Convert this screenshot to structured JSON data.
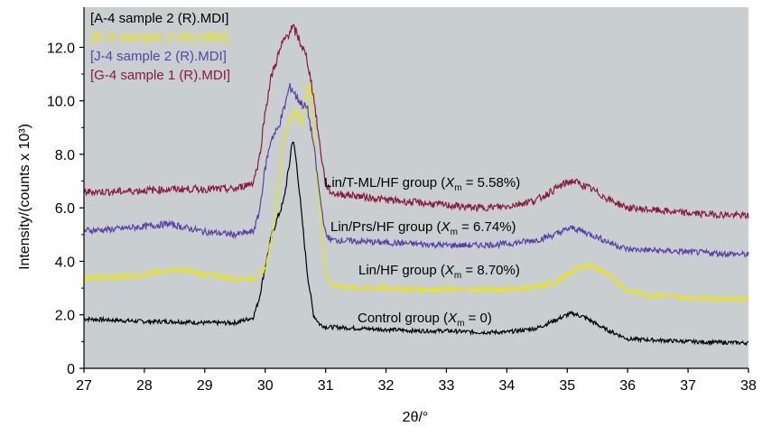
{
  "chart_data": {
    "type": "line",
    "xlabel": "2θ/°",
    "ylabel": "Intensity/(counts x 10³)",
    "xlim": [
      27,
      38
    ],
    "ylim": [
      0,
      13.5
    ],
    "x_ticks": [
      "27",
      "28",
      "29",
      "30",
      "31",
      "32",
      "33",
      "34",
      "35",
      "36",
      "37",
      "38"
    ],
    "y_ticks": [
      "0",
      "2.0",
      "4.0",
      "6.0",
      "8.0",
      "10.0",
      "12.0"
    ],
    "y_tick_values": [
      0,
      2,
      4,
      6,
      8,
      10,
      12
    ],
    "legend_position": "top-left",
    "background_color": "#c9cfd0",
    "grid": false,
    "series": [
      {
        "name": "[A-4 sample 2 (R).MDI]",
        "color": "#000000",
        "annotation": "Control group (Xm = 0)",
        "annotation_parts": {
          "prefix": "Control group (",
          "var": "X",
          "sub": "m",
          "suffix": " = 0)"
        },
        "points": [
          [
            27.0,
            1.85
          ],
          [
            27.5,
            1.8
          ],
          [
            28.0,
            1.75
          ],
          [
            28.5,
            1.75
          ],
          [
            29.0,
            1.7
          ],
          [
            29.5,
            1.7
          ],
          [
            29.8,
            1.9
          ],
          [
            29.9,
            2.6
          ],
          [
            30.0,
            3.8
          ],
          [
            30.1,
            4.9
          ],
          [
            30.2,
            5.6
          ],
          [
            30.3,
            6.2
          ],
          [
            30.4,
            7.6
          ],
          [
            30.45,
            8.6
          ],
          [
            30.5,
            8.0
          ],
          [
            30.55,
            7.0
          ],
          [
            30.6,
            5.8
          ],
          [
            30.7,
            3.5
          ],
          [
            30.8,
            2.0
          ],
          [
            30.9,
            1.65
          ],
          [
            31.0,
            1.55
          ],
          [
            31.5,
            1.5
          ],
          [
            32.0,
            1.45
          ],
          [
            32.5,
            1.4
          ],
          [
            33.0,
            1.4
          ],
          [
            33.5,
            1.35
          ],
          [
            34.0,
            1.35
          ],
          [
            34.5,
            1.5
          ],
          [
            34.8,
            1.8
          ],
          [
            35.0,
            2.0
          ],
          [
            35.1,
            2.05
          ],
          [
            35.3,
            1.9
          ],
          [
            35.6,
            1.5
          ],
          [
            36.0,
            1.1
          ],
          [
            36.5,
            1.05
          ],
          [
            37.0,
            1.0
          ],
          [
            37.5,
            0.97
          ],
          [
            38.0,
            0.95
          ]
        ]
      },
      {
        "name": "[E-4 sample 2 (R).MDI]",
        "color": "#f0e600",
        "annotation": "Lin/HF group (Xm = 8.70%)",
        "annotation_parts": {
          "prefix": "Lin/HF group (",
          "var": "X",
          "sub": "m",
          "suffix": " = 8.70%)"
        },
        "points": [
          [
            27.0,
            3.4
          ],
          [
            27.5,
            3.4
          ],
          [
            28.0,
            3.5
          ],
          [
            28.5,
            3.7
          ],
          [
            28.8,
            3.6
          ],
          [
            29.0,
            3.5
          ],
          [
            29.5,
            3.35
          ],
          [
            29.8,
            3.35
          ],
          [
            30.0,
            3.7
          ],
          [
            30.1,
            4.8
          ],
          [
            30.2,
            6.5
          ],
          [
            30.3,
            8.6
          ],
          [
            30.4,
            9.3
          ],
          [
            30.5,
            9.6
          ],
          [
            30.6,
            9.2
          ],
          [
            30.7,
            10.5
          ],
          [
            30.75,
            10.3
          ],
          [
            30.8,
            8.8
          ],
          [
            30.9,
            6.0
          ],
          [
            31.0,
            3.6
          ],
          [
            31.1,
            3.1
          ],
          [
            31.5,
            3.0
          ],
          [
            32.0,
            3.0
          ],
          [
            32.5,
            2.95
          ],
          [
            33.0,
            2.95
          ],
          [
            33.5,
            2.95
          ],
          [
            34.0,
            2.95
          ],
          [
            34.5,
            3.05
          ],
          [
            34.8,
            3.2
          ],
          [
            35.0,
            3.5
          ],
          [
            35.2,
            3.8
          ],
          [
            35.4,
            3.85
          ],
          [
            35.6,
            3.6
          ],
          [
            35.8,
            3.3
          ],
          [
            36.0,
            2.9
          ],
          [
            36.3,
            2.75
          ],
          [
            37.0,
            2.65
          ],
          [
            37.5,
            2.6
          ],
          [
            38.0,
            2.6
          ]
        ]
      },
      {
        "name": "[J-4 sample 2 (R).MDI]",
        "color": "#5a3fa8",
        "annotation": "Lin/Prs/HF group (Xm = 6.74%)",
        "annotation_parts": {
          "prefix": "Lin/Prs/HF group (",
          "var": "X",
          "sub": "m",
          "suffix": " = 6.74%)"
        },
        "points": [
          [
            27.0,
            5.15
          ],
          [
            27.5,
            5.2
          ],
          [
            28.0,
            5.3
          ],
          [
            28.4,
            5.4
          ],
          [
            28.8,
            5.2
          ],
          [
            29.0,
            5.1
          ],
          [
            29.5,
            5.0
          ],
          [
            29.8,
            5.1
          ],
          [
            29.9,
            5.8
          ],
          [
            30.0,
            7.5
          ],
          [
            30.1,
            8.6
          ],
          [
            30.2,
            8.9
          ],
          [
            30.3,
            9.6
          ],
          [
            30.4,
            10.5
          ],
          [
            30.45,
            10.45
          ],
          [
            30.5,
            10.2
          ],
          [
            30.6,
            9.9
          ],
          [
            30.7,
            9.7
          ],
          [
            30.8,
            8.4
          ],
          [
            30.9,
            6.5
          ],
          [
            31.0,
            5.0
          ],
          [
            31.1,
            4.8
          ],
          [
            31.5,
            4.75
          ],
          [
            32.0,
            4.7
          ],
          [
            32.5,
            4.65
          ],
          [
            33.0,
            4.6
          ],
          [
            33.5,
            4.6
          ],
          [
            34.0,
            4.65
          ],
          [
            34.5,
            4.8
          ],
          [
            34.8,
            5.0
          ],
          [
            35.0,
            5.2
          ],
          [
            35.1,
            5.25
          ],
          [
            35.4,
            5.0
          ],
          [
            35.7,
            4.7
          ],
          [
            36.0,
            4.45
          ],
          [
            36.5,
            4.4
          ],
          [
            37.0,
            4.35
          ],
          [
            37.5,
            4.3
          ],
          [
            38.0,
            4.25
          ]
        ]
      },
      {
        "name": "[G-4 sample 1 (R).MDI]",
        "color": "#8b1a3a",
        "annotation": "Lin/T-ML/HF group (Xm = 5.58%)",
        "annotation_parts": {
          "prefix": "Lin/T-ML/HF group (",
          "var": "X",
          "sub": "m",
          "suffix": " = 5.58%)"
        },
        "points": [
          [
            27.0,
            6.6
          ],
          [
            27.5,
            6.6
          ],
          [
            28.0,
            6.65
          ],
          [
            28.5,
            6.7
          ],
          [
            29.0,
            6.7
          ],
          [
            29.5,
            6.7
          ],
          [
            29.8,
            6.95
          ],
          [
            29.9,
            7.8
          ],
          [
            30.0,
            9.6
          ],
          [
            30.1,
            10.9
          ],
          [
            30.2,
            11.6
          ],
          [
            30.3,
            12.2
          ],
          [
            30.4,
            12.6
          ],
          [
            30.45,
            12.7
          ],
          [
            30.5,
            12.6
          ],
          [
            30.6,
            12.1
          ],
          [
            30.7,
            11.5
          ],
          [
            30.8,
            10.2
          ],
          [
            30.9,
            8.4
          ],
          [
            31.0,
            6.9
          ],
          [
            31.1,
            6.55
          ],
          [
            31.5,
            6.45
          ],
          [
            32.0,
            6.3
          ],
          [
            32.5,
            6.2
          ],
          [
            33.0,
            6.1
          ],
          [
            33.5,
            6.0
          ],
          [
            34.0,
            6.05
          ],
          [
            34.5,
            6.3
          ],
          [
            34.8,
            6.7
          ],
          [
            35.0,
            6.95
          ],
          [
            35.1,
            7.0
          ],
          [
            35.4,
            6.7
          ],
          [
            35.7,
            6.3
          ],
          [
            36.0,
            6.0
          ],
          [
            36.5,
            5.9
          ],
          [
            37.0,
            5.8
          ],
          [
            37.5,
            5.75
          ],
          [
            38.0,
            5.7
          ]
        ]
      }
    ]
  }
}
